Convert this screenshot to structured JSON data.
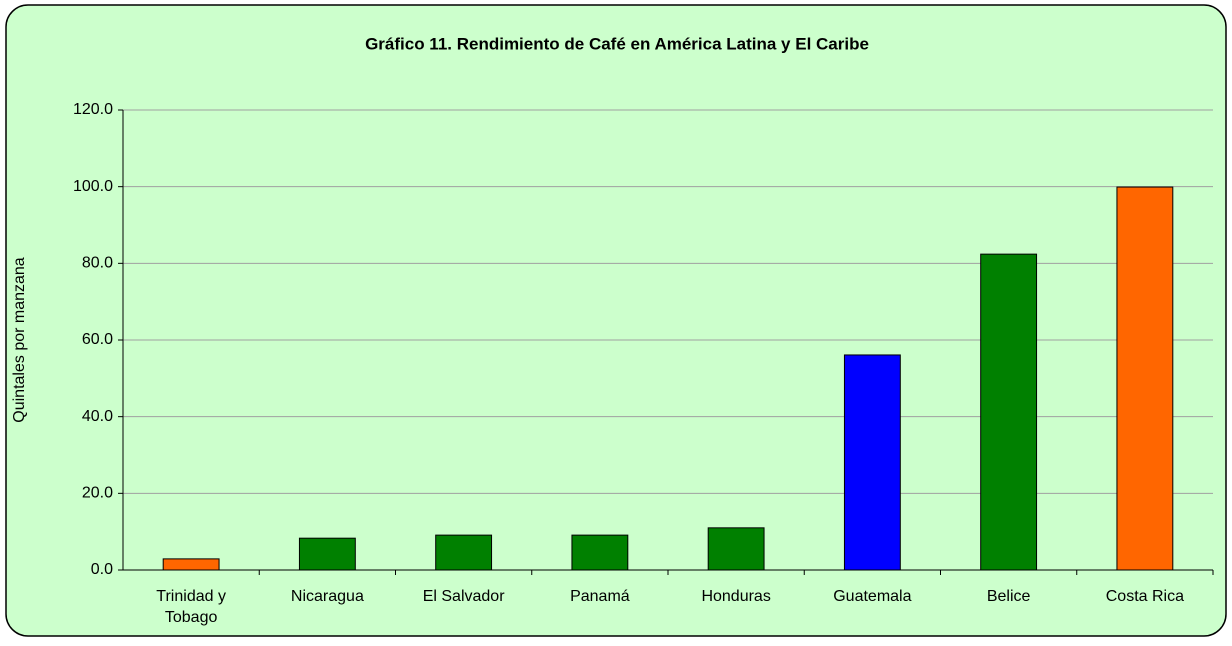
{
  "chart_data": {
    "type": "bar",
    "title": "Gráfico 11. Rendimiento de Café en América Latina y El Caribe",
    "y_label": "Quintales por manzana",
    "categories": [
      "Trinidad y Tobago",
      "Nicaragua",
      "El Salvador",
      "Panamá",
      "Honduras",
      "Guatemala",
      "Belice",
      "Costa Rica"
    ],
    "values": [
      2.9,
      8.3,
      9.1,
      9.1,
      11.0,
      56.1,
      82.4,
      99.9
    ],
    "colors": [
      "#ff6600",
      "#008000",
      "#008000",
      "#008000",
      "#008000",
      "#0000ff",
      "#008000",
      "#ff6600"
    ],
    "ylim": [
      0,
      120
    ],
    "yticks": [
      {
        "value": 0,
        "label": "0.0"
      },
      {
        "value": 20,
        "label": "20.0"
      },
      {
        "value": 40,
        "label": "40.0"
      },
      {
        "value": 60,
        "label": "60.0"
      },
      {
        "value": 80,
        "label": "80.0"
      },
      {
        "value": 100,
        "label": "100.0"
      },
      {
        "value": 120,
        "label": "120.0"
      }
    ],
    "grid": true
  }
}
